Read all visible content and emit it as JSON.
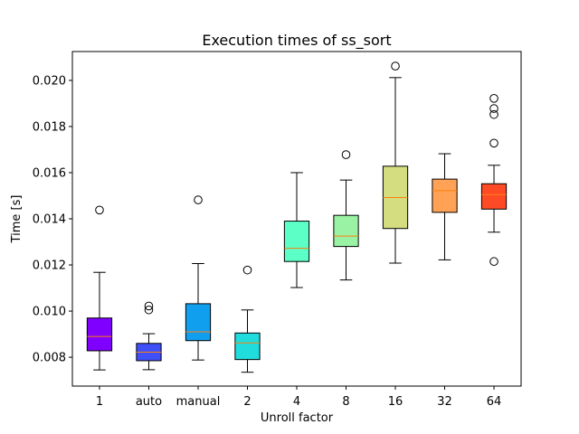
{
  "chart_data": {
    "type": "boxplot",
    "title": "Execution times of ss_sort",
    "xlabel": "Unroll factor",
    "ylabel": "Time [s]",
    "ylim": [
      0.00675,
      0.02125
    ],
    "yticks": [
      0.008,
      0.01,
      0.012,
      0.014,
      0.016,
      0.018,
      0.02
    ],
    "ytick_labels": [
      "0.008",
      "0.010",
      "0.012",
      "0.014",
      "0.016",
      "0.018",
      "0.020"
    ],
    "grid": false,
    "categories": [
      "1",
      "auto",
      "manual",
      "2",
      "4",
      "8",
      "16",
      "32",
      "64"
    ],
    "boxes": [
      {
        "category": "1",
        "whisker_low": 0.00745,
        "q1": 0.00828,
        "median": 0.0089,
        "q3": 0.0097,
        "whisker_high": 0.01168,
        "outliers": [
          0.01438
        ],
        "color": "#7f00ff"
      },
      {
        "category": "auto",
        "whisker_low": 0.00746,
        "q1": 0.00785,
        "median": 0.00822,
        "q3": 0.0086,
        "whisker_high": 0.00902,
        "outliers": [
          0.01005,
          0.01022
        ],
        "color": "#4050f8"
      },
      {
        "category": "manual",
        "whisker_low": 0.00788,
        "q1": 0.00872,
        "median": 0.0091,
        "q3": 0.01032,
        "whisker_high": 0.01206,
        "outliers": [
          0.01482
        ],
        "color": "#109fef"
      },
      {
        "category": "2",
        "whisker_low": 0.00735,
        "q1": 0.0079,
        "median": 0.00862,
        "q3": 0.00905,
        "whisker_high": 0.01005,
        "outliers": [
          0.01178
        ],
        "color": "#20dcdd"
      },
      {
        "category": "4",
        "whisker_low": 0.01102,
        "q1": 0.01215,
        "median": 0.01272,
        "q3": 0.0139,
        "whisker_high": 0.016,
        "outliers": [],
        "color": "#5cffc6"
      },
      {
        "category": "8",
        "whisker_low": 0.01135,
        "q1": 0.0128,
        "median": 0.01325,
        "q3": 0.01415,
        "whisker_high": 0.01568,
        "outliers": [
          0.01678
        ],
        "color": "#9af3a5"
      },
      {
        "category": "16",
        "whisker_low": 0.01208,
        "q1": 0.01358,
        "median": 0.01492,
        "q3": 0.01628,
        "whisker_high": 0.02012,
        "outliers": [
          0.02062
        ],
        "color": "#d4dd80"
      },
      {
        "category": "32",
        "whisker_low": 0.01222,
        "q1": 0.01428,
        "median": 0.01522,
        "q3": 0.01572,
        "whisker_high": 0.01682,
        "outliers": [],
        "color": "#ffa256"
      },
      {
        "category": "64",
        "whisker_low": 0.01342,
        "q1": 0.01442,
        "median": 0.01505,
        "q3": 0.01552,
        "whisker_high": 0.01632,
        "outliers": [
          0.01215,
          0.01728,
          0.01852,
          0.01878,
          0.01922
        ],
        "color": "#ff4a26"
      }
    ],
    "median_color": "#ff7f0e"
  }
}
